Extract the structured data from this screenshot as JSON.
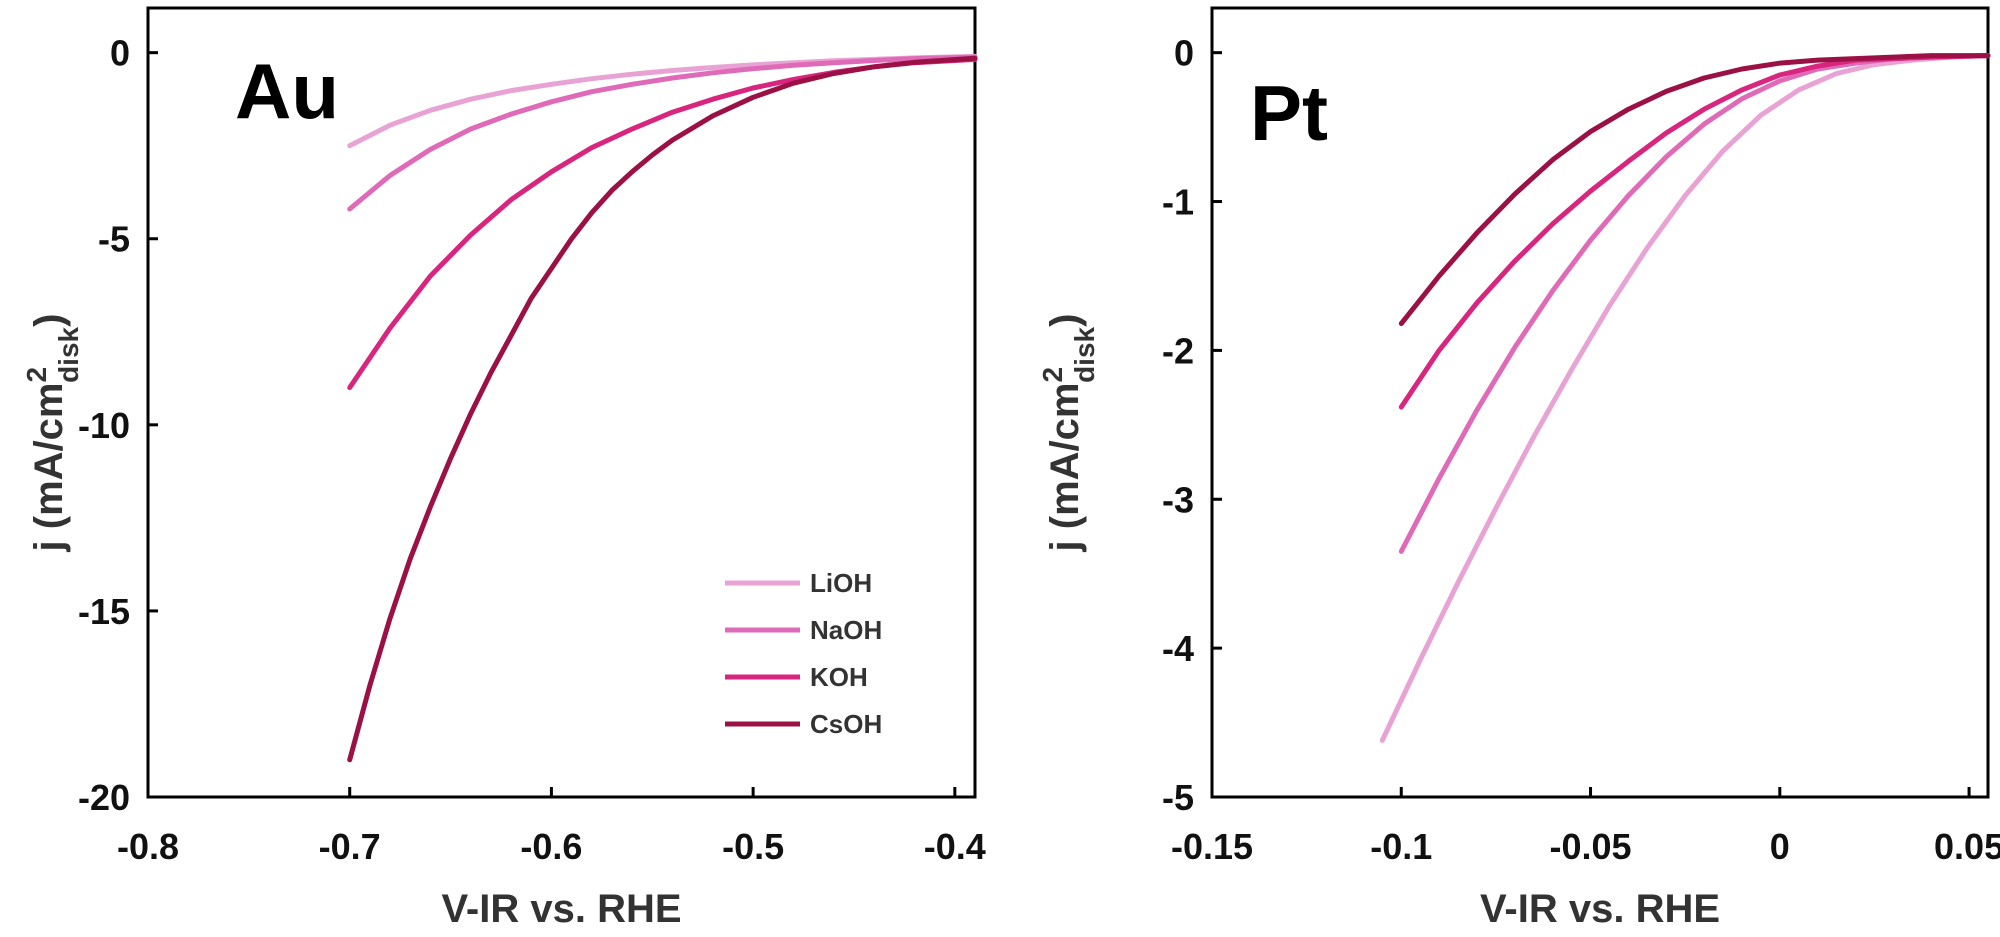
{
  "chart_data": [
    {
      "type": "line",
      "panel_label": "Au",
      "xlabel": "V-IR vs. RHE",
      "ylabel": {
        "main": "j (mA/cm",
        "sup": "2",
        "sub": "disk",
        "close": ")"
      },
      "xlim": [
        -0.8,
        -0.39
      ],
      "ylim": [
        -20,
        1.2
      ],
      "xticks": [
        {
          "value": -0.8,
          "label": "-0.8"
        },
        {
          "value": -0.7,
          "label": "-0.7"
        },
        {
          "value": -0.6,
          "label": "-0.6"
        },
        {
          "value": -0.5,
          "label": "-0.5"
        },
        {
          "value": -0.4,
          "label": "-0.4"
        }
      ],
      "yticks": [
        {
          "value": 0,
          "label": "0"
        },
        {
          "value": -5,
          "label": "-5"
        },
        {
          "value": -10,
          "label": "-10"
        },
        {
          "value": -15,
          "label": "-15"
        },
        {
          "value": -20,
          "label": "-20"
        }
      ],
      "legend": {
        "position": "lower-right"
      },
      "series": [
        {
          "name": "LiOH",
          "color": "#e8a2d3",
          "x": [
            -0.7,
            -0.68,
            -0.66,
            -0.64,
            -0.62,
            -0.6,
            -0.58,
            -0.56,
            -0.54,
            -0.52,
            -0.5,
            -0.48,
            -0.46,
            -0.44,
            -0.42,
            -0.39
          ],
          "y": [
            -2.5,
            -1.95,
            -1.55,
            -1.25,
            -1.02,
            -0.85,
            -0.7,
            -0.58,
            -0.48,
            -0.4,
            -0.33,
            -0.27,
            -0.22,
            -0.18,
            -0.14,
            -0.1
          ]
        },
        {
          "name": "NaOH",
          "color": "#df6ab8",
          "x": [
            -0.7,
            -0.68,
            -0.66,
            -0.64,
            -0.62,
            -0.6,
            -0.58,
            -0.56,
            -0.54,
            -0.52,
            -0.5,
            -0.48,
            -0.46,
            -0.44,
            -0.42,
            -0.39
          ],
          "y": [
            -4.2,
            -3.3,
            -2.6,
            -2.05,
            -1.65,
            -1.32,
            -1.05,
            -0.85,
            -0.68,
            -0.54,
            -0.43,
            -0.34,
            -0.27,
            -0.21,
            -0.16,
            -0.12
          ]
        },
        {
          "name": "KOH",
          "color": "#d8267f",
          "x": [
            -0.7,
            -0.68,
            -0.66,
            -0.64,
            -0.62,
            -0.6,
            -0.58,
            -0.56,
            -0.54,
            -0.52,
            -0.5,
            -0.48,
            -0.46,
            -0.44,
            -0.42,
            -0.39
          ],
          "y": [
            -9.0,
            -7.4,
            -6.0,
            -4.9,
            -3.95,
            -3.2,
            -2.55,
            -2.05,
            -1.6,
            -1.25,
            -0.95,
            -0.72,
            -0.53,
            -0.38,
            -0.27,
            -0.18
          ]
        },
        {
          "name": "CsOH",
          "color": "#9b1045",
          "x": [
            -0.7,
            -0.69,
            -0.68,
            -0.67,
            -0.66,
            -0.65,
            -0.64,
            -0.63,
            -0.62,
            -0.61,
            -0.6,
            -0.59,
            -0.58,
            -0.57,
            -0.56,
            -0.55,
            -0.54,
            -0.52,
            -0.5,
            -0.48,
            -0.46,
            -0.44,
            -0.42,
            -0.39
          ],
          "y": [
            -19.0,
            -17.0,
            -15.2,
            -13.6,
            -12.2,
            -10.9,
            -9.7,
            -8.6,
            -7.6,
            -6.6,
            -5.8,
            -5.0,
            -4.3,
            -3.7,
            -3.2,
            -2.75,
            -2.35,
            -1.7,
            -1.2,
            -0.82,
            -0.56,
            -0.38,
            -0.26,
            -0.15
          ]
        }
      ]
    },
    {
      "type": "line",
      "panel_label": "Pt",
      "xlabel": "V-IR vs. RHE",
      "ylabel": {
        "main": "j (mA/cm",
        "sup": "2",
        "sub": "disk",
        "close": ")"
      },
      "xlim": [
        -0.15,
        0.055
      ],
      "ylim": [
        -5,
        0.3
      ],
      "xticks": [
        {
          "value": -0.15,
          "label": "-0.15"
        },
        {
          "value": -0.1,
          "label": "-0.1"
        },
        {
          "value": -0.05,
          "label": "-0.05"
        },
        {
          "value": 0,
          "label": "0"
        },
        {
          "value": 0.05,
          "label": "0.05"
        }
      ],
      "yticks": [
        {
          "value": 0,
          "label": "0"
        },
        {
          "value": -1,
          "label": "-1"
        },
        {
          "value": -2,
          "label": "-2"
        },
        {
          "value": -3,
          "label": "-3"
        },
        {
          "value": -4,
          "label": "-4"
        },
        {
          "value": -5,
          "label": "-5"
        }
      ],
      "series": [
        {
          "name": "LiOH",
          "color": "#e8a2d3",
          "x": [
            -0.105,
            -0.095,
            -0.085,
            -0.075,
            -0.065,
            -0.055,
            -0.045,
            -0.035,
            -0.025,
            -0.015,
            -0.005,
            0.005,
            0.015,
            0.025,
            0.035,
            0.045,
            0.055
          ],
          "y": [
            -4.62,
            -4.08,
            -3.56,
            -3.06,
            -2.58,
            -2.13,
            -1.7,
            -1.31,
            -0.96,
            -0.66,
            -0.42,
            -0.25,
            -0.14,
            -0.08,
            -0.05,
            -0.03,
            -0.02
          ]
        },
        {
          "name": "NaOH",
          "color": "#df6ab8",
          "x": [
            -0.1,
            -0.09,
            -0.08,
            -0.07,
            -0.06,
            -0.05,
            -0.04,
            -0.03,
            -0.02,
            -0.01,
            0,
            0.01,
            0.02,
            0.03,
            0.04,
            0.055
          ],
          "y": [
            -3.35,
            -2.86,
            -2.4,
            -1.98,
            -1.6,
            -1.26,
            -0.96,
            -0.7,
            -0.48,
            -0.31,
            -0.19,
            -0.11,
            -0.07,
            -0.04,
            -0.03,
            -0.02
          ]
        },
        {
          "name": "KOH",
          "color": "#d8267f",
          "x": [
            -0.1,
            -0.09,
            -0.08,
            -0.07,
            -0.06,
            -0.05,
            -0.04,
            -0.03,
            -0.02,
            -0.01,
            0,
            0.01,
            0.02,
            0.03,
            0.04,
            0.055
          ],
          "y": [
            -2.38,
            -2.0,
            -1.68,
            -1.4,
            -1.15,
            -0.93,
            -0.73,
            -0.54,
            -0.38,
            -0.25,
            -0.15,
            -0.09,
            -0.05,
            -0.04,
            -0.03,
            -0.02
          ]
        },
        {
          "name": "CsOH",
          "color": "#9b1045",
          "x": [
            -0.1,
            -0.09,
            -0.08,
            -0.07,
            -0.06,
            -0.05,
            -0.04,
            -0.03,
            -0.02,
            -0.01,
            0,
            0.01,
            0.02,
            0.03,
            0.04,
            0.055
          ],
          "y": [
            -1.82,
            -1.5,
            -1.21,
            -0.95,
            -0.72,
            -0.53,
            -0.38,
            -0.26,
            -0.17,
            -0.11,
            -0.07,
            -0.05,
            -0.04,
            -0.03,
            -0.02,
            -0.02
          ]
        }
      ]
    }
  ]
}
